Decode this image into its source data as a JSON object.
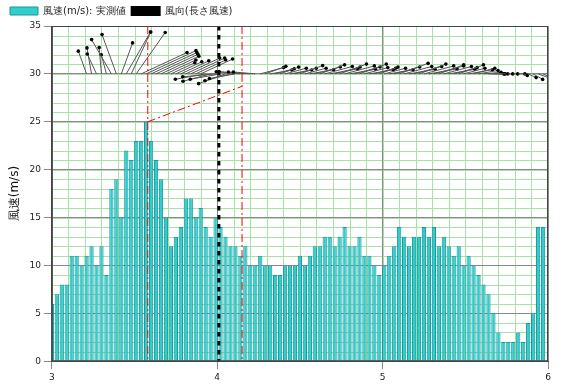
{
  "chart_data": {
    "type": "bar",
    "legend": "top",
    "grid": true,
    "ylabel": "風速(m/s)",
    "x": [
      3,
      3.03,
      3.06,
      3.09,
      3.12,
      3.15,
      3.18,
      3.21,
      3.24,
      3.27,
      3.3,
      3.33,
      3.36,
      3.39,
      3.42,
      3.45,
      3.48,
      3.51,
      3.54,
      3.57,
      3.6,
      3.63,
      3.66,
      3.69,
      3.72,
      3.75,
      3.78,
      3.81,
      3.84,
      3.87,
      3.9,
      3.93,
      3.96,
      3.99,
      4.02,
      4.05,
      4.08,
      4.11,
      4.14,
      4.17,
      4.2,
      4.23,
      4.26,
      4.29,
      4.32,
      4.35,
      4.38,
      4.41,
      4.44,
      4.47,
      4.5,
      4.53,
      4.56,
      4.59,
      4.62,
      4.65,
      4.68,
      4.71,
      4.74,
      4.77,
      4.8,
      4.83,
      4.86,
      4.89,
      4.92,
      4.95,
      4.98,
      5.01,
      5.04,
      5.07,
      5.1,
      5.13,
      5.16,
      5.19,
      5.22,
      5.25,
      5.28,
      5.31,
      5.34,
      5.37,
      5.4,
      5.43,
      5.46,
      5.49,
      5.52,
      5.55,
      5.58,
      5.61,
      5.64,
      5.67,
      5.7,
      5.73,
      5.76,
      5.79,
      5.82,
      5.85,
      5.88,
      5.91,
      5.94,
      5.97
    ],
    "series": [
      {
        "name": "風速(m/s): 実測値",
        "color": "#33cccc",
        "values": [
          6,
          7,
          8,
          8,
          11,
          11,
          10,
          11,
          12,
          10,
          12,
          9,
          18,
          19,
          15,
          22,
          21,
          23,
          23,
          25,
          23,
          21,
          19,
          15,
          12,
          13,
          14,
          17,
          17,
          15,
          16,
          14,
          13,
          15,
          14,
          13,
          12,
          12,
          11,
          12,
          10,
          10,
          11,
          10,
          10,
          9,
          9,
          10,
          10,
          10,
          11,
          10,
          11,
          12,
          12,
          13,
          13,
          12,
          13,
          14,
          12,
          12,
          13,
          11,
          11,
          10,
          9,
          10,
          11,
          12,
          14,
          13,
          12,
          13,
          13,
          14,
          13,
          14,
          12,
          13,
          12,
          11,
          12,
          10,
          11,
          10,
          9,
          8,
          7,
          5,
          3,
          2,
          2,
          2,
          3,
          2,
          4,
          5,
          14,
          14
        ]
      },
      {
        "name": "風向(長さ風速)",
        "type": "vector",
        "color": "#000000",
        "base": 30,
        "direction": [
          null,
          null,
          null,
          null,
          null,
          null,
          null,
          110,
          100,
          115,
          95,
          105,
          120,
          110,
          70,
          60,
          65,
          55,
          25,
          25,
          25,
          25,
          25,
          25,
          25,
          25,
          25,
          25,
          25,
          25,
          25,
          190,
          195,
          185,
          190,
          200,
          195,
          190,
          175,
          175,
          175,
          175,
          15,
          20,
          10,
          15,
          20,
          15,
          10,
          15,
          20,
          15,
          10,
          15,
          20,
          15,
          10,
          15,
          20,
          15,
          10,
          15,
          20,
          15,
          10,
          15,
          20,
          15,
          10,
          15,
          20,
          15,
          10,
          15,
          20,
          15,
          10,
          15,
          20,
          15,
          10,
          15,
          20,
          15,
          10,
          15,
          10,
          5,
          0,
          0,
          0,
          0,
          0,
          0,
          0,
          -20,
          -25,
          -30,
          -20,
          -25
        ]
      }
    ],
    "xlim": [
      3,
      6
    ],
    "xticks": [
      3,
      4,
      5,
      6
    ],
    "ylim": [
      0,
      35
    ],
    "yticks": [
      0,
      5,
      10,
      15,
      20,
      25,
      30,
      35
    ],
    "annotations": [
      {
        "type": "vline",
        "x": 3.58,
        "color": "#ff0000",
        "line_style": "dashdot"
      },
      {
        "type": "vline",
        "x": 4.15,
        "color": "#ff0000",
        "line_style": "dashdot"
      },
      {
        "type": "vline",
        "x": 4.01,
        "color": "#000000",
        "line_style": "dotted"
      },
      {
        "type": "segment",
        "x": [
          3.58,
          4.15
        ],
        "y": [
          25,
          28.7
        ],
        "color": "#ff0000",
        "line_style": "dashdot"
      }
    ]
  }
}
